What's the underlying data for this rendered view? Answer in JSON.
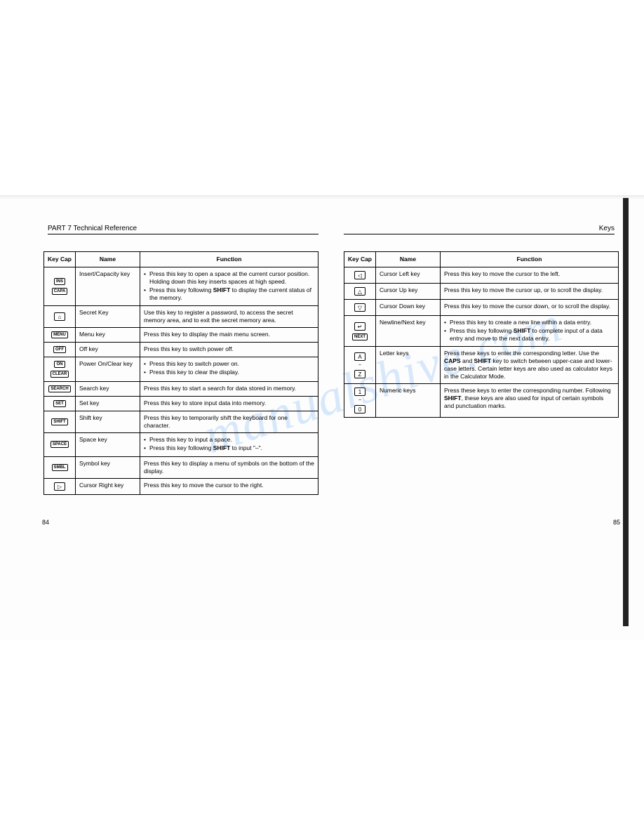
{
  "header_left": "PART 7   Technical Reference",
  "header_right": "Keys",
  "page_num_left": "84",
  "page_num_right": "85",
  "watermark_text": "manualshive.com",
  "columns": {
    "keycap": "Key Cap",
    "name": "Name",
    "function": "Function"
  },
  "left_rows": [
    {
      "keycaps": [
        "INS",
        "CAPA"
      ],
      "name": "Insert/Capacity key",
      "bullets": [
        "Press this key to open a space at the current cursor position. Holding down this key inserts spaces at high speed.",
        "Press this key following SHIFT to display the current status of the memory."
      ]
    },
    {
      "keycap_symbol": "⌂",
      "name": "Secret Key",
      "text": "Use this key to register a password, to access the secret memory area, and to exit the secret memory area."
    },
    {
      "keycaps": [
        "MENU"
      ],
      "name": "Menu key",
      "text": "Press this key to display the main menu screen."
    },
    {
      "keycaps": [
        "OFF"
      ],
      "name": "Off key",
      "text": "Press this key to switch power off."
    },
    {
      "keycaps": [
        "ON",
        "CLEAR"
      ],
      "name": "Power On/Clear key",
      "bullets": [
        "Press this key to switch power on.",
        "Press this key to clear the display."
      ]
    },
    {
      "keycaps": [
        "SEARCH"
      ],
      "name": "Search key",
      "text": "Press this key to start a search for data stored in memory."
    },
    {
      "keycaps": [
        "SET"
      ],
      "name": "Set key",
      "text": "Press this key to store input data into memory."
    },
    {
      "keycaps": [
        "SHIFT"
      ],
      "name": "Shift key",
      "text": "Press this key to temporarily shift the keyboard for one character."
    },
    {
      "keycaps": [
        "SPACE"
      ],
      "name": "Space key",
      "bullets": [
        "Press this key to input a space.",
        "Press this key following SHIFT to input \"–\"."
      ]
    },
    {
      "keycaps": [
        "SMBL"
      ],
      "name": "Symbol key",
      "text": "Press this key to display a menu of symbols on the bottom of the display."
    },
    {
      "keycap_symbol": "▷",
      "name": "Cursor Right key",
      "text": "Press this key to move the cursor to the right."
    }
  ],
  "right_rows": [
    {
      "keycap_symbol": "◁",
      "name": "Cursor Left key",
      "text": "Press this key to move the cursor to the left."
    },
    {
      "keycap_symbol": "△",
      "name": "Cursor Up key",
      "text": "Press this key to move the cursor up, or to scroll the display."
    },
    {
      "keycap_symbol": "▽",
      "name": "Cursor Down key",
      "text": "Press this key to move the cursor down, or to scroll the display."
    },
    {
      "keycap_stack": [
        "↵",
        "NEXT"
      ],
      "name": "Newline/Next key",
      "bullets": [
        "Press this key to create a new line within a data entry.",
        "Press this key following SHIFT to complete input of a data entry and move to the next data entry."
      ]
    },
    {
      "keycap_range": [
        "A",
        "Z"
      ],
      "name": "Letter keys",
      "text": "Press these keys to enter the corresponding letter. Use the CAPS and SHIFT key to switch between upper-case and lower-case letters. Certain letter keys are also used as calculator keys in the Calculator Mode."
    },
    {
      "keycap_range": [
        "1",
        "0"
      ],
      "name": "Numeric keys",
      "text": "Press these keys to enter the corresponding number. Following SHIFT, these keys are also used for input of certain symbols and punctuation marks."
    }
  ]
}
